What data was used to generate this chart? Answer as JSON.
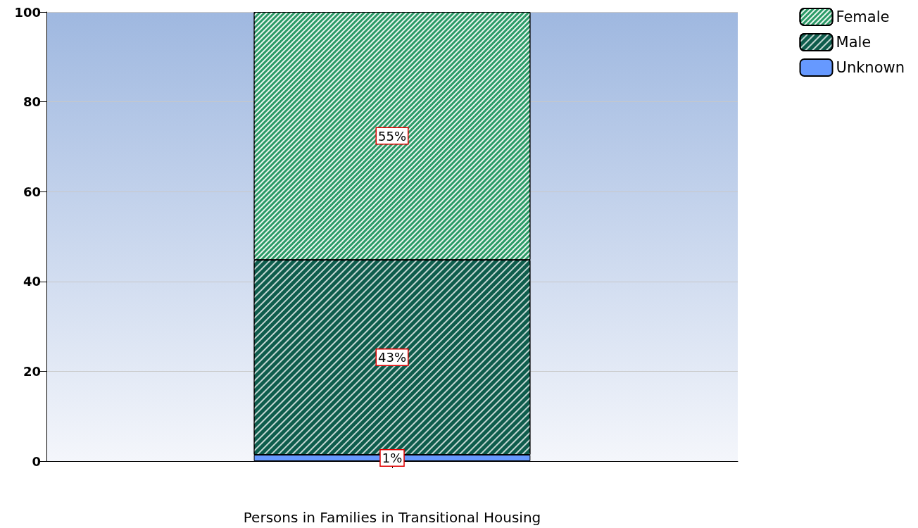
{
  "chart_data": {
    "type": "bar",
    "stacked": true,
    "xlabel": "Persons in Families in Transitional Housing",
    "categories": [
      null
    ],
    "series": [
      {
        "name": "Unknown",
        "color": "#6699ff",
        "values": [
          1.4
        ],
        "value_labels": [
          "1%"
        ]
      },
      {
        "name": "Male",
        "color": "#0e5c4c",
        "values": [
          43.4
        ],
        "value_labels": [
          "43%"
        ]
      },
      {
        "name": "Female",
        "color": "#2a9a66",
        "values": [
          55.2
        ],
        "value_labels": [
          "55%"
        ]
      }
    ],
    "ylim": [
      0,
      100
    ],
    "yticks": [
      0,
      20,
      40,
      60,
      80,
      100
    ],
    "grid": "y",
    "legend": "top right"
  }
}
